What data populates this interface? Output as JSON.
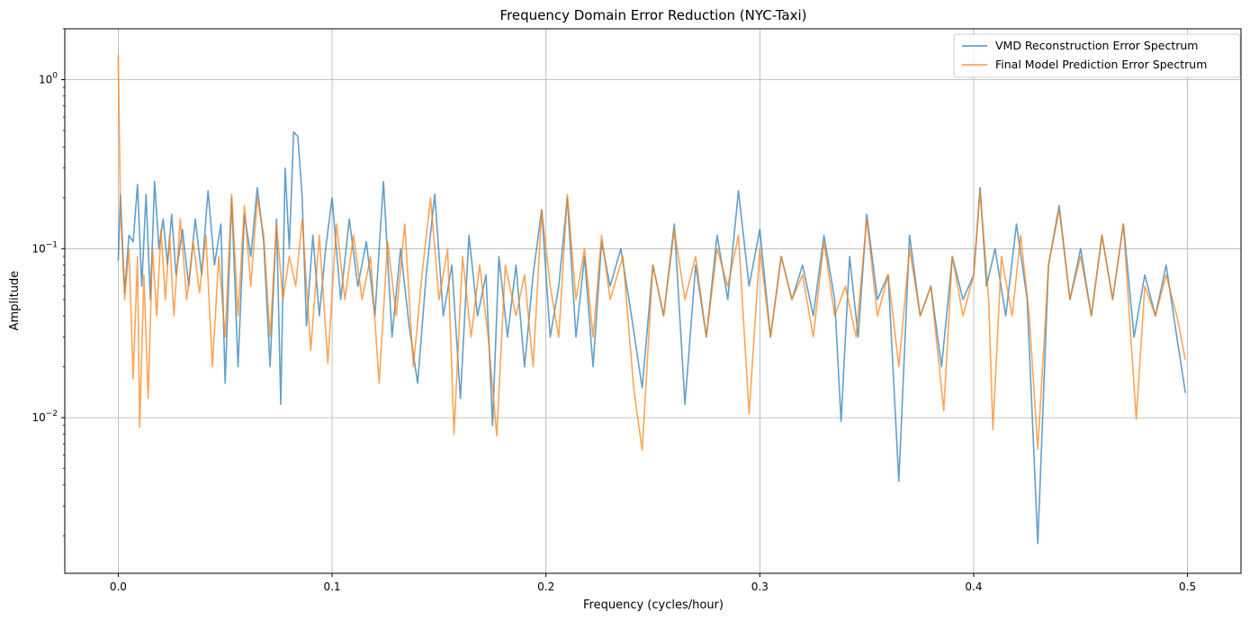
{
  "chart_data": {
    "type": "line",
    "title": "Frequency Domain Error Reduction (NYC-Taxi)",
    "xlabel": "Frequency (cycles/hour)",
    "ylabel": "Amplitude",
    "xlim": [
      -0.025,
      0.525
    ],
    "ylim": [
      0.0012,
      2.0
    ],
    "yscale": "log",
    "grid": true,
    "legend_position": "top-right",
    "x_ticks": [
      {
        "value": 0.0,
        "label": "0.0"
      },
      {
        "value": 0.1,
        "label": "0.1"
      },
      {
        "value": 0.2,
        "label": "0.2"
      },
      {
        "value": 0.3,
        "label": "0.3"
      },
      {
        "value": 0.4,
        "label": "0.4"
      },
      {
        "value": 0.5,
        "label": "0.5"
      }
    ],
    "y_ticks": [
      {
        "value": 0.01,
        "base": "10",
        "exp": "−2"
      },
      {
        "value": 0.1,
        "base": "10",
        "exp": "−1"
      },
      {
        "value": 1,
        "base": "10",
        "exp": "0"
      }
    ],
    "series": [
      {
        "name": "VMD Reconstruction Error Spectrum",
        "color": "#1f77b4",
        "points": [
          [
            0.0,
            0.085
          ],
          [
            0.001,
            0.21
          ],
          [
            0.003,
            0.055
          ],
          [
            0.005,
            0.12
          ],
          [
            0.007,
            0.11
          ],
          [
            0.009,
            0.24
          ],
          [
            0.011,
            0.06
          ],
          [
            0.013,
            0.21
          ],
          [
            0.015,
            0.05
          ],
          [
            0.017,
            0.25
          ],
          [
            0.019,
            0.1
          ],
          [
            0.021,
            0.15
          ],
          [
            0.023,
            0.08
          ],
          [
            0.025,
            0.16
          ],
          [
            0.027,
            0.07
          ],
          [
            0.03,
            0.13
          ],
          [
            0.033,
            0.06
          ],
          [
            0.036,
            0.15
          ],
          [
            0.039,
            0.07
          ],
          [
            0.042,
            0.22
          ],
          [
            0.045,
            0.08
          ],
          [
            0.048,
            0.14
          ],
          [
            0.05,
            0.016
          ],
          [
            0.053,
            0.2
          ],
          [
            0.056,
            0.02
          ],
          [
            0.059,
            0.16
          ],
          [
            0.062,
            0.09
          ],
          [
            0.065,
            0.23
          ],
          [
            0.068,
            0.11
          ],
          [
            0.071,
            0.02
          ],
          [
            0.074,
            0.15
          ],
          [
            0.076,
            0.012
          ],
          [
            0.078,
            0.3
          ],
          [
            0.08,
            0.1
          ],
          [
            0.082,
            0.49
          ],
          [
            0.084,
            0.46
          ],
          [
            0.086,
            0.2
          ],
          [
            0.088,
            0.035
          ],
          [
            0.091,
            0.12
          ],
          [
            0.094,
            0.04
          ],
          [
            0.097,
            0.1
          ],
          [
            0.1,
            0.2
          ],
          [
            0.104,
            0.05
          ],
          [
            0.108,
            0.15
          ],
          [
            0.112,
            0.06
          ],
          [
            0.116,
            0.11
          ],
          [
            0.12,
            0.04
          ],
          [
            0.124,
            0.25
          ],
          [
            0.128,
            0.03
          ],
          [
            0.132,
            0.1
          ],
          [
            0.136,
            0.035
          ],
          [
            0.14,
            0.016
          ],
          [
            0.144,
            0.07
          ],
          [
            0.148,
            0.21
          ],
          [
            0.152,
            0.04
          ],
          [
            0.156,
            0.08
          ],
          [
            0.16,
            0.013
          ],
          [
            0.164,
            0.12
          ],
          [
            0.168,
            0.04
          ],
          [
            0.172,
            0.07
          ],
          [
            0.175,
            0.009
          ],
          [
            0.178,
            0.09
          ],
          [
            0.182,
            0.03
          ],
          [
            0.186,
            0.08
          ],
          [
            0.19,
            0.02
          ],
          [
            0.194,
            0.07
          ],
          [
            0.198,
            0.17
          ],
          [
            0.202,
            0.03
          ],
          [
            0.206,
            0.06
          ],
          [
            0.21,
            0.2
          ],
          [
            0.214,
            0.03
          ],
          [
            0.218,
            0.09
          ],
          [
            0.222,
            0.02
          ],
          [
            0.226,
            0.11
          ],
          [
            0.23,
            0.06
          ],
          [
            0.235,
            0.1
          ],
          [
            0.24,
            0.04
          ],
          [
            0.245,
            0.015
          ],
          [
            0.25,
            0.08
          ],
          [
            0.255,
            0.04
          ],
          [
            0.26,
            0.14
          ],
          [
            0.265,
            0.012
          ],
          [
            0.27,
            0.08
          ],
          [
            0.275,
            0.03
          ],
          [
            0.28,
            0.12
          ],
          [
            0.285,
            0.05
          ],
          [
            0.29,
            0.22
          ],
          [
            0.295,
            0.06
          ],
          [
            0.3,
            0.13
          ],
          [
            0.305,
            0.03
          ],
          [
            0.31,
            0.09
          ],
          [
            0.315,
            0.05
          ],
          [
            0.32,
            0.08
          ],
          [
            0.325,
            0.04
          ],
          [
            0.33,
            0.12
          ],
          [
            0.335,
            0.05
          ],
          [
            0.338,
            0.0095
          ],
          [
            0.342,
            0.09
          ],
          [
            0.346,
            0.03
          ],
          [
            0.35,
            0.16
          ],
          [
            0.355,
            0.05
          ],
          [
            0.36,
            0.07
          ],
          [
            0.365,
            0.0042
          ],
          [
            0.37,
            0.12
          ],
          [
            0.375,
            0.04
          ],
          [
            0.38,
            0.06
          ],
          [
            0.385,
            0.02
          ],
          [
            0.39,
            0.09
          ],
          [
            0.395,
            0.05
          ],
          [
            0.4,
            0.07
          ],
          [
            0.403,
            0.23
          ],
          [
            0.406,
            0.06
          ],
          [
            0.41,
            0.1
          ],
          [
            0.415,
            0.04
          ],
          [
            0.42,
            0.14
          ],
          [
            0.425,
            0.05
          ],
          [
            0.43,
            0.0018
          ],
          [
            0.435,
            0.08
          ],
          [
            0.44,
            0.18
          ],
          [
            0.445,
            0.05
          ],
          [
            0.45,
            0.1
          ],
          [
            0.455,
            0.04
          ],
          [
            0.46,
            0.12
          ],
          [
            0.465,
            0.05
          ],
          [
            0.47,
            0.14
          ],
          [
            0.475,
            0.03
          ],
          [
            0.48,
            0.07
          ],
          [
            0.485,
            0.04
          ],
          [
            0.49,
            0.08
          ],
          [
            0.495,
            0.03
          ],
          [
            0.499,
            0.014
          ]
        ]
      },
      {
        "name": "Final Model Prediction Error Spectrum",
        "color": "#ff7f0e",
        "points": [
          [
            0.0,
            1.4
          ],
          [
            0.001,
            0.18
          ],
          [
            0.003,
            0.05
          ],
          [
            0.005,
            0.1
          ],
          [
            0.007,
            0.017
          ],
          [
            0.009,
            0.09
          ],
          [
            0.01,
            0.0088
          ],
          [
            0.012,
            0.07
          ],
          [
            0.014,
            0.013
          ],
          [
            0.016,
            0.1
          ],
          [
            0.018,
            0.04
          ],
          [
            0.02,
            0.13
          ],
          [
            0.022,
            0.05
          ],
          [
            0.024,
            0.12
          ],
          [
            0.026,
            0.04
          ],
          [
            0.029,
            0.15
          ],
          [
            0.032,
            0.05
          ],
          [
            0.035,
            0.11
          ],
          [
            0.038,
            0.055
          ],
          [
            0.041,
            0.12
          ],
          [
            0.044,
            0.02
          ],
          [
            0.047,
            0.09
          ],
          [
            0.05,
            0.03
          ],
          [
            0.053,
            0.21
          ],
          [
            0.056,
            0.04
          ],
          [
            0.059,
            0.18
          ],
          [
            0.062,
            0.06
          ],
          [
            0.065,
            0.2
          ],
          [
            0.068,
            0.12
          ],
          [
            0.071,
            0.03
          ],
          [
            0.074,
            0.14
          ],
          [
            0.077,
            0.05
          ],
          [
            0.08,
            0.09
          ],
          [
            0.083,
            0.06
          ],
          [
            0.086,
            0.15
          ],
          [
            0.09,
            0.025
          ],
          [
            0.094,
            0.12
          ],
          [
            0.098,
            0.021
          ],
          [
            0.102,
            0.14
          ],
          [
            0.106,
            0.05
          ],
          [
            0.11,
            0.12
          ],
          [
            0.114,
            0.05
          ],
          [
            0.118,
            0.09
          ],
          [
            0.122,
            0.016
          ],
          [
            0.126,
            0.11
          ],
          [
            0.13,
            0.04
          ],
          [
            0.134,
            0.14
          ],
          [
            0.138,
            0.02
          ],
          [
            0.142,
            0.07
          ],
          [
            0.146,
            0.2
          ],
          [
            0.15,
            0.05
          ],
          [
            0.154,
            0.1
          ],
          [
            0.157,
            0.008
          ],
          [
            0.161,
            0.09
          ],
          [
            0.165,
            0.03
          ],
          [
            0.169,
            0.08
          ],
          [
            0.173,
            0.03
          ],
          [
            0.177,
            0.0078
          ],
          [
            0.181,
            0.08
          ],
          [
            0.186,
            0.04
          ],
          [
            0.19,
            0.07
          ],
          [
            0.194,
            0.02
          ],
          [
            0.198,
            0.17
          ],
          [
            0.202,
            0.06
          ],
          [
            0.206,
            0.03
          ],
          [
            0.21,
            0.21
          ],
          [
            0.214,
            0.05
          ],
          [
            0.218,
            0.1
          ],
          [
            0.222,
            0.03
          ],
          [
            0.226,
            0.12
          ],
          [
            0.23,
            0.05
          ],
          [
            0.236,
            0.09
          ],
          [
            0.241,
            0.015
          ],
          [
            0.245,
            0.0064
          ],
          [
            0.25,
            0.08
          ],
          [
            0.255,
            0.04
          ],
          [
            0.26,
            0.13
          ],
          [
            0.265,
            0.05
          ],
          [
            0.27,
            0.09
          ],
          [
            0.275,
            0.03
          ],
          [
            0.28,
            0.1
          ],
          [
            0.285,
            0.06
          ],
          [
            0.29,
            0.12
          ],
          [
            0.295,
            0.0105
          ],
          [
            0.3,
            0.1
          ],
          [
            0.305,
            0.03
          ],
          [
            0.31,
            0.09
          ],
          [
            0.315,
            0.05
          ],
          [
            0.32,
            0.07
          ],
          [
            0.325,
            0.03
          ],
          [
            0.33,
            0.11
          ],
          [
            0.335,
            0.04
          ],
          [
            0.34,
            0.06
          ],
          [
            0.345,
            0.03
          ],
          [
            0.35,
            0.15
          ],
          [
            0.355,
            0.04
          ],
          [
            0.36,
            0.07
          ],
          [
            0.365,
            0.02
          ],
          [
            0.37,
            0.1
          ],
          [
            0.375,
            0.04
          ],
          [
            0.38,
            0.06
          ],
          [
            0.386,
            0.011
          ],
          [
            0.39,
            0.09
          ],
          [
            0.395,
            0.04
          ],
          [
            0.4,
            0.07
          ],
          [
            0.403,
            0.22
          ],
          [
            0.407,
            0.05
          ],
          [
            0.409,
            0.0085
          ],
          [
            0.413,
            0.09
          ],
          [
            0.418,
            0.04
          ],
          [
            0.422,
            0.12
          ],
          [
            0.426,
            0.04
          ],
          [
            0.43,
            0.0065
          ],
          [
            0.435,
            0.08
          ],
          [
            0.44,
            0.17
          ],
          [
            0.445,
            0.05
          ],
          [
            0.45,
            0.09
          ],
          [
            0.455,
            0.04
          ],
          [
            0.46,
            0.12
          ],
          [
            0.465,
            0.05
          ],
          [
            0.47,
            0.14
          ],
          [
            0.476,
            0.0098
          ],
          [
            0.48,
            0.06
          ],
          [
            0.485,
            0.04
          ],
          [
            0.49,
            0.07
          ],
          [
            0.495,
            0.04
          ],
          [
            0.499,
            0.022
          ]
        ]
      }
    ]
  }
}
